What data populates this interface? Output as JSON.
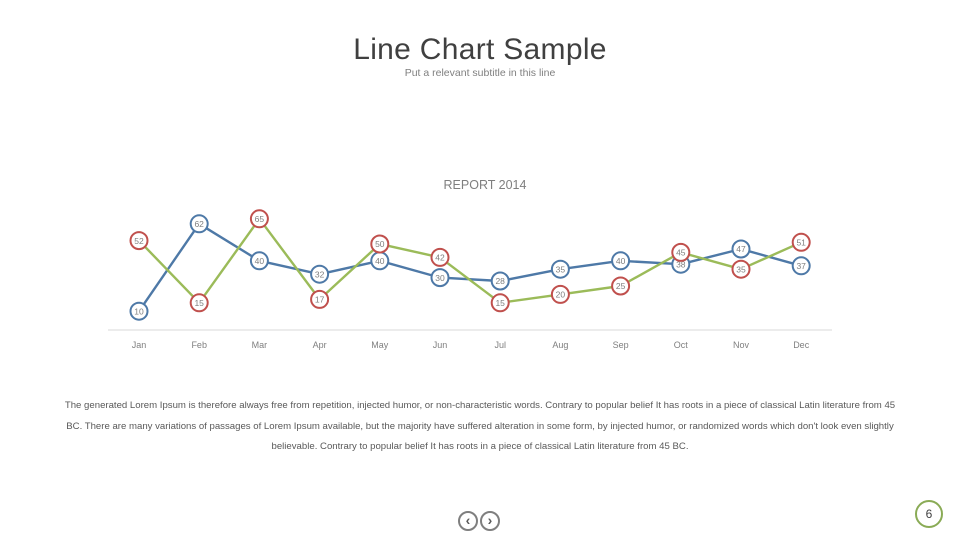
{
  "page": {
    "title": "Line Chart Sample",
    "subtitle": "Put a relevant subtitle in this line",
    "body_text": "The generated Lorem Ipsum is therefore always free from repetition, injected humor, or non-characteristic words. Contrary to popular belief It has roots in a piece of classical Latin literature from 45 BC. There are many variations of passages of Lorem Ipsum available, but the majority have suffered alteration in some form, by injected humor, or randomized words which don't look even slightly believable. Contrary to popular belief It has roots in a piece of classical Latin literature from 45 BC.",
    "page_number": "6",
    "nav": {
      "prev_icon": "chevron-left-icon",
      "next_icon": "chevron-right-icon"
    }
  },
  "colors": {
    "blue_series": "#4e79a7",
    "green_series": "#9bbb59",
    "blue_marker_border": "#4e79a7",
    "red_marker_border": "#c0504d",
    "axis": "#d9d9d9",
    "label_text": "#7f7f7f",
    "badge_border": "#8aab56"
  },
  "chart_data": {
    "type": "line",
    "title": "REPORT 2014",
    "categories": [
      "Jan",
      "Feb",
      "Mar",
      "Apr",
      "May",
      "Jun",
      "Jul",
      "Aug",
      "Sep",
      "Oct",
      "Nov",
      "Dec"
    ],
    "series": [
      {
        "values": [
          10,
          62,
          40,
          32,
          40,
          30,
          28,
          35,
          40,
          38,
          47,
          37
        ]
      },
      {
        "values": [
          52,
          15,
          65,
          17,
          50,
          42,
          15,
          20,
          25,
          45,
          35,
          51
        ]
      }
    ],
    "ylim": [
      0,
      70
    ],
    "grid": false,
    "legend": "none",
    "data_labels": true
  }
}
